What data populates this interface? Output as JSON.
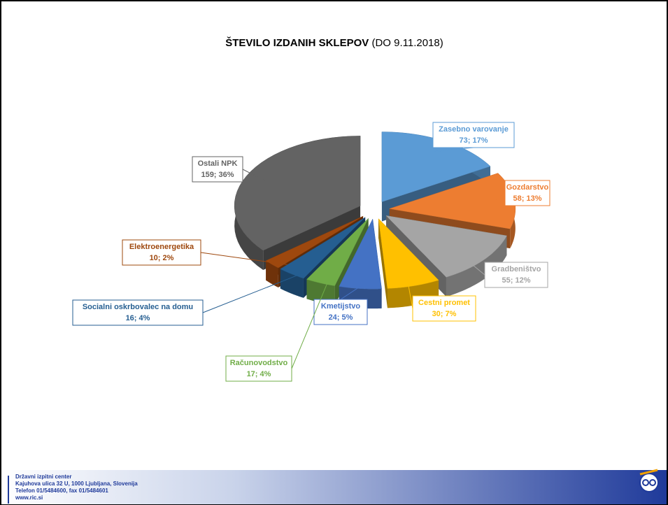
{
  "chart_data": {
    "type": "pie",
    "title": "ŠTEVILO IZDANIH SKLEPOV",
    "subtitle": "(DO 9.11.2018)",
    "categories": [
      "Zasebno varovanje",
      "Gozdarstvo",
      "Gradbeništvo",
      "Cestni promet",
      "Kmetijstvo",
      "Računovodstvo",
      "Socialni oskrbovalec na domu",
      "Elektroenergetika",
      "Ostali NPK"
    ],
    "values": [
      73,
      58,
      55,
      30,
      24,
      17,
      16,
      10,
      159
    ],
    "value_labels": [
      "73; 17%",
      "58; 13%",
      "55; 12%",
      "30; 7%",
      "24; 5%",
      "17; 4%",
      "16; 4%",
      "10; 2%",
      "159; 36%"
    ],
    "colors": [
      "#5b9bd5",
      "#ed7d31",
      "#a5a5a5",
      "#ffc000",
      "#4472c4",
      "#70ad47",
      "#255e91",
      "#9e480e",
      "#636363"
    ]
  },
  "footer": {
    "lines": [
      "Državni izpitni center",
      "Kajuhova ulica 32 U, 1000 Ljubljana, Slovenija",
      "Telefon 01/5484600, fax 01/5484601",
      "www.ric.si"
    ]
  }
}
